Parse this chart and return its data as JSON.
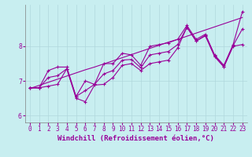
{
  "xlabel": "Windchill (Refroidissement éolien,°C)",
  "ylabel": "",
  "background_color": "#c8eef0",
  "grid_color": "#b0d8dc",
  "line_color": "#990099",
  "x": [
    0,
    1,
    2,
    3,
    4,
    5,
    6,
    7,
    8,
    9,
    10,
    11,
    12,
    13,
    14,
    15,
    16,
    17,
    18,
    19,
    20,
    21,
    22,
    23
  ],
  "y_max": [
    6.8,
    6.8,
    7.3,
    7.4,
    7.4,
    6.55,
    7.0,
    6.9,
    7.5,
    7.5,
    7.8,
    7.75,
    7.45,
    8.0,
    8.05,
    8.1,
    8.2,
    8.6,
    8.2,
    8.35,
    7.75,
    7.45,
    8.05,
    9.0
  ],
  "y_min": [
    6.8,
    6.8,
    6.85,
    6.9,
    7.35,
    6.5,
    6.4,
    6.88,
    6.9,
    7.1,
    7.45,
    7.5,
    7.3,
    7.5,
    7.55,
    7.6,
    7.95,
    8.55,
    8.15,
    8.3,
    7.7,
    7.4,
    8.0,
    8.05
  ],
  "y_mean": [
    6.8,
    6.8,
    7.1,
    7.15,
    7.35,
    6.55,
    6.72,
    6.9,
    7.2,
    7.3,
    7.6,
    7.62,
    7.38,
    7.75,
    7.8,
    7.85,
    8.05,
    8.55,
    8.15,
    8.32,
    7.72,
    7.42,
    8.02,
    8.5
  ],
  "y_trend": [
    6.78,
    6.87,
    6.96,
    7.05,
    7.14,
    7.23,
    7.32,
    7.4,
    7.49,
    7.58,
    7.67,
    7.76,
    7.85,
    7.94,
    8.03,
    8.12,
    8.2,
    8.29,
    8.38,
    8.47,
    8.56,
    8.65,
    8.74,
    8.83
  ],
  "ylim": [
    5.8,
    9.2
  ],
  "yticks": [
    6,
    7,
    8
  ],
  "xlim": [
    -0.5,
    23.5
  ],
  "tick_fontsize": 5.5,
  "axis_fontsize": 6.5
}
